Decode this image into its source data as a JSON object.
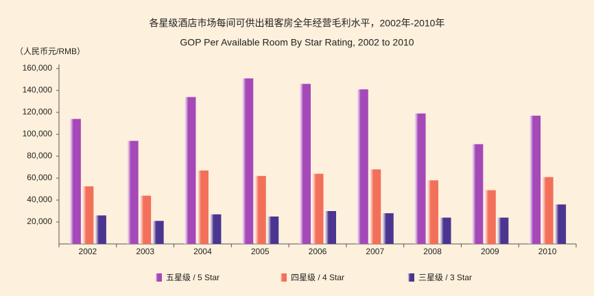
{
  "chart_data": {
    "type": "bar",
    "title": "各星级酒店市场每间可供出租客房全年经营毛利水平，2002年-2010年",
    "subtitle": "GOP Per Available Room By Star Rating, 2002 to 2010",
    "y_axis_label": "（人民币元/RMB）",
    "categories": [
      "2002",
      "2003",
      "2004",
      "2005",
      "2006",
      "2007",
      "2008",
      "2009",
      "2010"
    ],
    "series": [
      {
        "name": "五星级 / 5 Star",
        "color": "#a548b8",
        "values": [
          114000,
          94000,
          134000,
          151000,
          146000,
          141000,
          119000,
          91000,
          117000
        ]
      },
      {
        "name": "四星级 / 4 Star",
        "color": "#f2705a",
        "values": [
          52500,
          44000,
          67000,
          62000,
          64000,
          68000,
          58000,
          49000,
          61000
        ]
      },
      {
        "name": "三星级 / 3 Star",
        "color": "#4a3590",
        "values": [
          26000,
          21000,
          27000,
          25000,
          30000,
          28000,
          24000,
          24000,
          36000
        ]
      }
    ],
    "ylim": [
      0,
      160000
    ],
    "yticks": [
      {
        "value": 20000,
        "label": "20,000"
      },
      {
        "value": 40000,
        "label": "40,000"
      },
      {
        "value": 60000,
        "label": "60,000"
      },
      {
        "value": 80000,
        "label": "80,000"
      },
      {
        "value": 100000,
        "label": "100,000"
      },
      {
        "value": 120000,
        "label": "120,000"
      },
      {
        "value": 140000,
        "label": "140,000"
      },
      {
        "value": 160000,
        "label": "160,000"
      }
    ],
    "grid": false
  }
}
